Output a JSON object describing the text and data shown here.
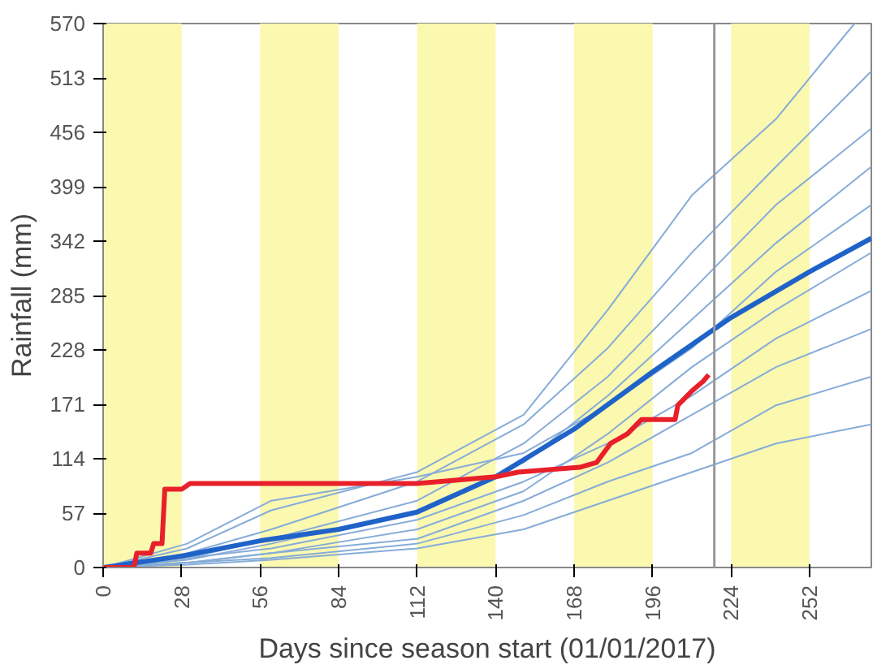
{
  "chart_data": {
    "type": "line",
    "xlabel": "Days since season start (01/01/2017)",
    "ylabel": "Rainfall (mm)",
    "xlim": [
      0,
      274
    ],
    "ylim": [
      0,
      570
    ],
    "xticks": [
      0,
      28,
      56,
      84,
      112,
      140,
      168,
      196,
      224,
      252
    ],
    "yticks": [
      0,
      57,
      114,
      171,
      228,
      285,
      342,
      399,
      456,
      513,
      570
    ],
    "grid": false,
    "line_style": "solid",
    "bands": [
      {
        "axis": "x",
        "from": 0,
        "to": 28,
        "color": "#fbf8b0"
      },
      {
        "axis": "x",
        "from": 56,
        "to": 84,
        "color": "#fbf8b0"
      },
      {
        "axis": "x",
        "from": 112,
        "to": 140,
        "color": "#fbf8b0"
      },
      {
        "axis": "x",
        "from": 168,
        "to": 196,
        "color": "#fbf8b0"
      },
      {
        "axis": "x",
        "from": 224,
        "to": 252,
        "color": "#fbf8b0"
      }
    ],
    "ref_lines": [
      {
        "axis": "x",
        "value": 218,
        "color": "#999999"
      }
    ],
    "series": [
      {
        "color": "#86acd8",
        "x": [
          0,
          30,
          60,
          112,
          150,
          180,
          210,
          240,
          268
        ],
        "values": [
          0,
          20,
          60,
          100,
          160,
          270,
          390,
          470,
          570
        ]
      },
      {
        "color": "#86acd8",
        "x": [
          0,
          30,
          60,
          112,
          150,
          180,
          210,
          240,
          274
        ],
        "values": [
          0,
          15,
          40,
          90,
          150,
          230,
          330,
          420,
          520
        ]
      },
      {
        "color": "#86acd8",
        "x": [
          0,
          30,
          60,
          112,
          150,
          180,
          210,
          240,
          274
        ],
        "values": [
          0,
          10,
          30,
          70,
          130,
          200,
          290,
          380,
          460
        ]
      },
      {
        "color": "#86acd8",
        "x": [
          0,
          30,
          60,
          112,
          150,
          180,
          210,
          240,
          274
        ],
        "values": [
          0,
          8,
          25,
          60,
          110,
          180,
          260,
          340,
          420
        ]
      },
      {
        "color": "#86acd8",
        "x": [
          0,
          30,
          60,
          112,
          150,
          180,
          210,
          240,
          274
        ],
        "values": [
          0,
          25,
          70,
          95,
          120,
          170,
          230,
          310,
          380
        ]
      },
      {
        "color": "#86acd8",
        "x": [
          0,
          30,
          60,
          112,
          150,
          180,
          210,
          240,
          274
        ],
        "values": [
          0,
          5,
          15,
          40,
          80,
          140,
          210,
          270,
          330
        ]
      },
      {
        "color": "#86acd8",
        "x": [
          0,
          30,
          60,
          112,
          150,
          180,
          210,
          240,
          274
        ],
        "values": [
          0,
          10,
          20,
          50,
          90,
          130,
          180,
          240,
          290
        ]
      },
      {
        "color": "#86acd8",
        "x": [
          0,
          30,
          60,
          112,
          150,
          180,
          210,
          240,
          274
        ],
        "values": [
          0,
          5,
          15,
          30,
          70,
          110,
          160,
          210,
          250
        ]
      },
      {
        "color": "#86acd8",
        "x": [
          0,
          30,
          60,
          112,
          150,
          180,
          210,
          240,
          274
        ],
        "values": [
          0,
          5,
          10,
          25,
          55,
          90,
          120,
          170,
          200
        ]
      },
      {
        "color": "#86acd8",
        "x": [
          0,
          30,
          60,
          112,
          150,
          180,
          210,
          240,
          274
        ],
        "values": [
          0,
          3,
          8,
          20,
          40,
          70,
          100,
          130,
          150
        ]
      },
      {
        "color": "#1f62c8",
        "x": [
          0,
          28,
          56,
          84,
          112,
          140,
          168,
          196,
          224,
          252,
          274
        ],
        "values": [
          0,
          12,
          28,
          40,
          58,
          95,
          145,
          205,
          262,
          310,
          345
        ]
      },
      {
        "color": "#e8202a",
        "x": [
          0,
          11,
          12,
          17,
          18,
          21,
          22,
          28,
          31,
          112,
          140,
          148,
          170,
          176,
          181,
          187,
          192,
          204,
          205,
          210,
          214,
          216
        ],
        "values": [
          0,
          0,
          15,
          15,
          25,
          25,
          82,
          82,
          88,
          88,
          95,
          100,
          105,
          110,
          130,
          140,
          155,
          155,
          170,
          185,
          195,
          202
        ]
      }
    ]
  }
}
